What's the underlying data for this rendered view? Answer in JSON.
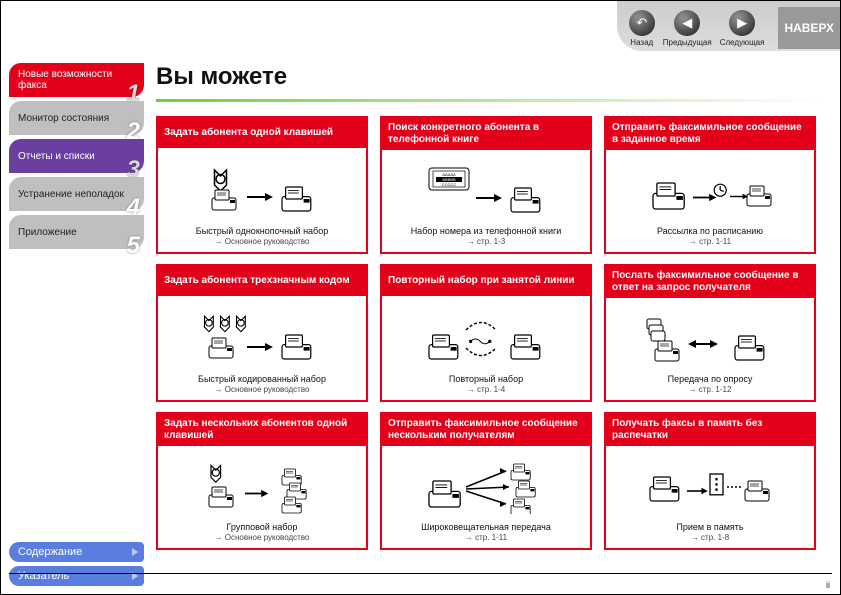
{
  "topnav": {
    "back": "Назад",
    "prev": "Предыдущая",
    "next": "Следующая",
    "up": "НАВЕРХ"
  },
  "sidebar": {
    "items": [
      {
        "label": "Новые возможности факса",
        "num": "1",
        "cls": "side-red"
      },
      {
        "label": "Монитор состояния",
        "num": "2",
        "cls": "side-gray"
      },
      {
        "label": "Отчеты и списки",
        "num": "3",
        "cls": "side-purple"
      },
      {
        "label": "Устранение неполадок",
        "num": "4",
        "cls": "side-gray"
      },
      {
        "label": "Приложение",
        "num": "5",
        "cls": "side-gray"
      }
    ]
  },
  "bottom": {
    "contents": "Содержание",
    "index": "Указатель"
  },
  "main": {
    "title": "Вы можете",
    "cards": [
      {
        "head": "Задать абонента одной клавишей",
        "caption": "Быстрый однокнопочный набор",
        "ref": "Основное руководство",
        "icon": "one-touch"
      },
      {
        "head": "Поиск конкретного абонента в телефонной книге",
        "caption": "Набор номера из телефонной книги",
        "ref": "стр. 1-3",
        "icon": "directory"
      },
      {
        "head": "Отправить факсимильное сообщение в заданное время",
        "caption": "Рассылка по расписанию",
        "ref": "стр. 1-11",
        "icon": "schedule"
      },
      {
        "head": "Задать абонента трехзначным кодом",
        "caption": "Быстрый кодированный набор",
        "ref": "Основное руководство",
        "icon": "coded"
      },
      {
        "head": "Повторный набор при занятой линии",
        "caption": "Повторный набор",
        "ref": "стр. 1-4",
        "icon": "redial"
      },
      {
        "head": "Послать факсимильное сообщение в ответ на запрос получателя",
        "caption": "Передача по опросу",
        "ref": "стр. 1-12",
        "icon": "polling"
      },
      {
        "head": "Задать нескольких абонентов одной клавишей",
        "caption": "Групповой набор",
        "ref": "Основное руководство",
        "icon": "group"
      },
      {
        "head": "Отправить факсимильное сообщение нескольким получателям",
        "caption": "Широковещательная передача",
        "ref": "стр. 1-11",
        "icon": "broadcast"
      },
      {
        "head": "Получать факсы в память без распечатки",
        "caption": "Прием в память",
        "ref": "стр. 1-8",
        "icon": "memory"
      }
    ]
  },
  "page_num": "ii",
  "colors": {
    "brand_red": "#e2001a",
    "purple": "#6a3fa0",
    "blue_tab": "#5a7ee0",
    "green": "#6fcf3a",
    "gray": "#bfbfbf"
  }
}
